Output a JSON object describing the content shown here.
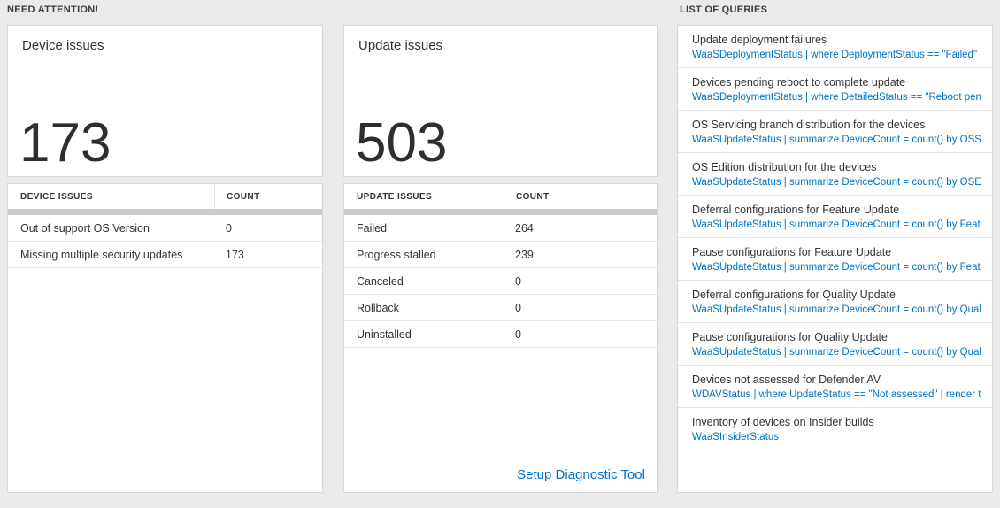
{
  "colors": {
    "background": "#eaeaea",
    "link_blue": "#0072c6",
    "text_dark": "#333333"
  },
  "need_attention": {
    "header": "NEED ATTENTION!"
  },
  "device_card": {
    "title": "Device issues",
    "count": "173",
    "table": {
      "headers": [
        "DEVICE ISSUES",
        "COUNT"
      ],
      "rows": [
        {
          "label": "Out of support OS Version",
          "count": "0"
        },
        {
          "label": "Missing multiple security updates",
          "count": "173"
        }
      ]
    }
  },
  "update_card": {
    "title": "Update issues",
    "count": "503",
    "table": {
      "headers": [
        "UPDATE ISSUES",
        "COUNT"
      ],
      "rows": [
        {
          "label": "Failed",
          "count": "264"
        },
        {
          "label": "Progress stalled",
          "count": "239"
        },
        {
          "label": "Canceled",
          "count": "0"
        },
        {
          "label": "Rollback",
          "count": "0"
        },
        {
          "label": "Uninstalled",
          "count": "0"
        }
      ]
    },
    "footer_link": "Setup Diagnostic Tool"
  },
  "queries_panel": {
    "header": "LIST OF QUERIES",
    "items": [
      {
        "title": "Update deployment failures",
        "query": "WaaSDeploymentStatus | where DeploymentStatus == \"Failed\" |..."
      },
      {
        "title": "Devices pending reboot to complete update",
        "query": "WaaSDeploymentStatus | where DetailedStatus == \"Reboot pend..."
      },
      {
        "title": "OS Servicing branch distribution for the devices",
        "query": "WaaSUpdateStatus | summarize DeviceCount = count() by OSSer..."
      },
      {
        "title": "OS Edition distribution for the devices",
        "query": "WaaSUpdateStatus | summarize DeviceCount = count() by OSEdit..."
      },
      {
        "title": "Deferral configurations for Feature Update",
        "query": "WaaSUpdateStatus | summarize DeviceCount = count() by Featur..."
      },
      {
        "title": "Pause configurations for Feature Update",
        "query": "WaaSUpdateStatus | summarize DeviceCount = count() by Featur..."
      },
      {
        "title": "Deferral configurations for Quality Update",
        "query": "WaaSUpdateStatus | summarize DeviceCount = count() by Qualit..."
      },
      {
        "title": "Pause configurations for Quality Update",
        "query": "WaaSUpdateStatus | summarize DeviceCount = count() by Qualit..."
      },
      {
        "title": "Devices not assessed for Defender AV",
        "query": "WDAVStatus | where UpdateStatus == \"Not assessed\" | render ta..."
      },
      {
        "title": "Inventory of devices on Insider builds",
        "query": "WaaSInsiderStatus"
      }
    ]
  }
}
